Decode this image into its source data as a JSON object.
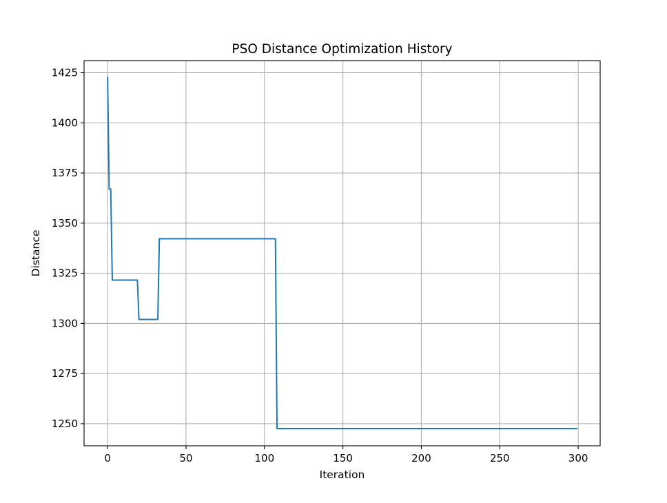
{
  "chart_data": {
    "type": "line",
    "title": "PSO Distance Optimization History",
    "xlabel": "Iteration",
    "ylabel": "Distance",
    "xlim": [
      -15,
      314
    ],
    "ylim": [
      1239,
      1431
    ],
    "xticks": [
      0,
      50,
      100,
      150,
      200,
      250,
      300
    ],
    "yticks": [
      1250,
      1275,
      1300,
      1325,
      1350,
      1375,
      1400,
      1425
    ],
    "grid": true,
    "series": [
      {
        "color": "#1f77b4",
        "x": [
          0,
          1,
          1,
          2,
          2,
          3,
          3,
          19,
          19,
          20,
          20,
          32,
          32,
          33,
          33,
          107,
          107,
          108,
          108,
          299
        ],
        "y": [
          1422.6,
          1367.0,
          1367.0,
          1367.0,
          1367.0,
          1321.6,
          1321.6,
          1321.6,
          1321.6,
          1302.0,
          1302.0,
          1302.0,
          1302.0,
          1342.2,
          1342.2,
          1342.2,
          1342.2,
          1247.6,
          1247.6,
          1247.6
        ]
      }
    ]
  }
}
